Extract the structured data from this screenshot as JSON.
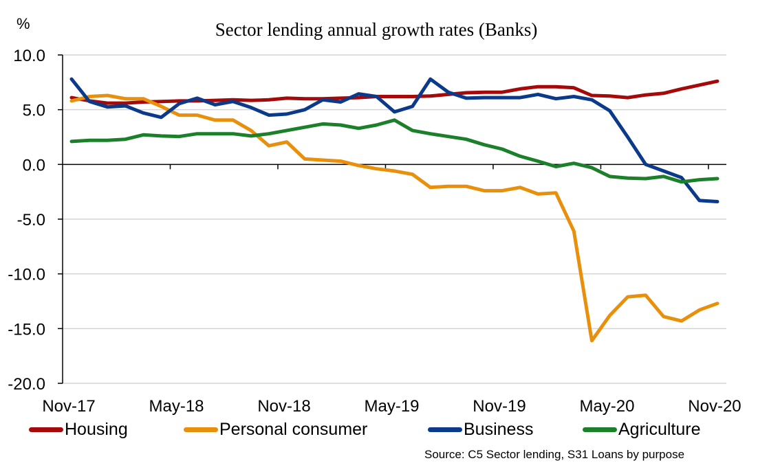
{
  "chart_data": {
    "type": "line",
    "title": "Sector lending annual growth rates (Banks)",
    "ylabel": "%",
    "xlabel": "",
    "ylim": [
      -20,
      10
    ],
    "yticks": [
      10,
      5,
      0,
      -5,
      -10,
      -15,
      -20
    ],
    "ytick_labels": [
      "10.0",
      "5.0",
      "0.0",
      "-5.0",
      "-10.0",
      "-15.0",
      "-20.0"
    ],
    "grid": true,
    "legend_position": "bottom",
    "x": [
      "Nov-17",
      "Dec-17",
      "Jan-18",
      "Feb-18",
      "Mar-18",
      "Apr-18",
      "May-18",
      "Jun-18",
      "Jul-18",
      "Aug-18",
      "Sep-18",
      "Oct-18",
      "Nov-18",
      "Dec-18",
      "Jan-19",
      "Feb-19",
      "Mar-19",
      "Apr-19",
      "May-19",
      "Jun-19",
      "Jul-19",
      "Aug-19",
      "Sep-19",
      "Oct-19",
      "Nov-19",
      "Dec-19",
      "Jan-20",
      "Feb-20",
      "Mar-20",
      "Apr-20",
      "May-20",
      "Jun-20",
      "Jul-20",
      "Aug-20",
      "Sep-20",
      "Oct-20",
      "Nov-20"
    ],
    "xtick_labels": [
      "Nov-17",
      "May-18",
      "Nov-18",
      "May-19",
      "Nov-19",
      "May-20",
      "Nov-20"
    ],
    "xtick_label_indices": [
      0,
      6,
      12,
      18,
      24,
      30,
      36
    ],
    "series": [
      {
        "name": "Housing",
        "color": "#A50A0A",
        "values": [
          6.1,
          5.8,
          5.6,
          5.6,
          5.7,
          5.75,
          5.8,
          5.8,
          5.85,
          5.9,
          5.85,
          5.9,
          6.05,
          6.0,
          6.0,
          6.05,
          6.1,
          6.2,
          6.2,
          6.2,
          6.25,
          6.4,
          6.55,
          6.6,
          6.6,
          6.9,
          7.1,
          7.1,
          7.0,
          6.3,
          6.25,
          6.1,
          6.35,
          6.5,
          6.9,
          7.25,
          7.6
        ]
      },
      {
        "name": "Personal consumer",
        "color": "#E8900C",
        "values": [
          5.8,
          6.2,
          6.3,
          6.0,
          6.0,
          5.3,
          4.5,
          4.5,
          4.05,
          4.05,
          3.1,
          1.7,
          2.05,
          0.5,
          0.4,
          0.3,
          -0.1,
          -0.4,
          -0.6,
          -0.9,
          -2.1,
          -2.0,
          -2.0,
          -2.4,
          -2.4,
          -2.1,
          -2.7,
          -2.6,
          -6.1,
          -16.1,
          -13.8,
          -12.1,
          -11.95,
          -13.9,
          -14.3,
          -13.3,
          -12.7
        ]
      },
      {
        "name": "Business",
        "color": "#0B3A8A",
        "values": [
          7.8,
          5.75,
          5.25,
          5.35,
          4.7,
          4.3,
          5.55,
          6.05,
          5.45,
          5.75,
          5.2,
          4.5,
          4.6,
          5.0,
          5.9,
          5.7,
          6.45,
          6.2,
          4.8,
          5.3,
          7.8,
          6.6,
          6.05,
          6.1,
          6.1,
          6.1,
          6.4,
          6.0,
          6.2,
          5.9,
          4.9,
          2.5,
          0.0,
          -0.6,
          -1.2,
          -3.3,
          -3.4
        ]
      },
      {
        "name": "Agriculture",
        "color": "#1B8029",
        "values": [
          2.1,
          2.2,
          2.2,
          2.3,
          2.7,
          2.6,
          2.55,
          2.8,
          2.8,
          2.8,
          2.6,
          2.8,
          3.1,
          3.4,
          3.7,
          3.6,
          3.3,
          3.6,
          4.05,
          3.1,
          2.8,
          2.55,
          2.3,
          1.8,
          1.4,
          0.75,
          0.3,
          -0.2,
          0.1,
          -0.3,
          -1.1,
          -1.25,
          -1.3,
          -1.1,
          -1.6,
          -1.4,
          -1.3
        ]
      }
    ],
    "source": "Source: C5 Sector lending, S31 Loans by purpose"
  }
}
